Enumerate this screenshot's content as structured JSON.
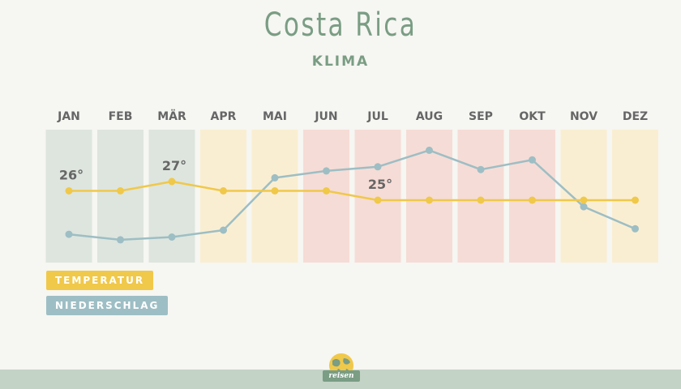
{
  "title": "Costa Rica",
  "subtitle": "KLIMA",
  "legend": {
    "temperature": "TEMPERATUR",
    "precipitation": "NIEDERSCHLAG"
  },
  "logo": {
    "text": "reisen",
    "icon": "globe-icon"
  },
  "colors": {
    "temperature": "#f0c84a",
    "precipitation": "#9dbec4",
    "title": "#7a9d84",
    "month_dry": "#dde5de",
    "month_transition": "#faeed2",
    "month_wet": "#f6dcd6"
  },
  "chart_data": {
    "type": "line",
    "categories": [
      "JAN",
      "FEB",
      "MÄR",
      "APR",
      "MAI",
      "JUN",
      "JUL",
      "AUG",
      "SEP",
      "OKT",
      "NOV",
      "DEZ"
    ],
    "series": [
      {
        "key": "temperature",
        "values": [
          26,
          26,
          27,
          26,
          26,
          26,
          25,
          25,
          25,
          25,
          25,
          25
        ],
        "labels": [
          {
            "index": 0,
            "text": "26°"
          },
          {
            "index": 2,
            "text": "27°"
          },
          {
            "index": 6,
            "text": "25°"
          }
        ]
      },
      {
        "key": "precipitation",
        "values": [
          0.17,
          0.13,
          0.15,
          0.2,
          0.58,
          0.63,
          0.66,
          0.78,
          0.64,
          0.71,
          0.37,
          0.21
        ]
      }
    ],
    "month_season": [
      "dry",
      "dry",
      "dry",
      "transition",
      "transition",
      "wet",
      "wet",
      "wet",
      "wet",
      "wet",
      "transition",
      "transition"
    ],
    "grid": false,
    "legend_position": "bottom-left"
  }
}
